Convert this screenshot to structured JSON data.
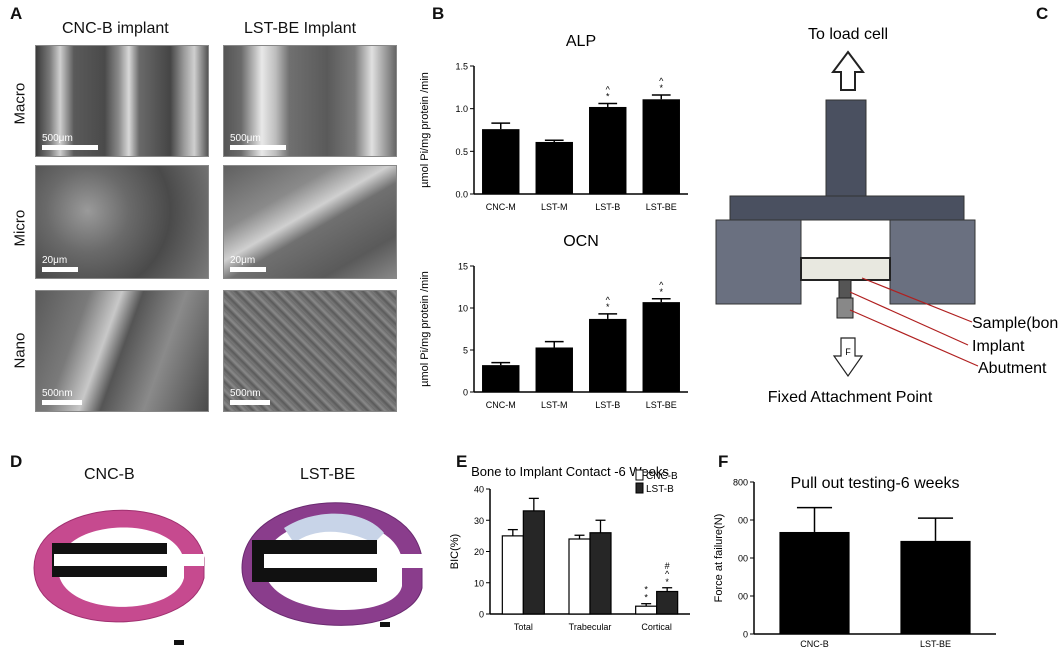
{
  "panels": {
    "A": {
      "letter": "A",
      "columns": [
        "CNC-B implant",
        "LST-BE Implant"
      ],
      "rows": [
        "Macro",
        "Micro",
        "Nano"
      ],
      "scales": [
        [
          "500μm",
          "500μm"
        ],
        [
          "20μm",
          "20μm"
        ],
        [
          "500nm",
          "500nm"
        ]
      ]
    },
    "B": {
      "letter": "B"
    },
    "C": {
      "letter": "C",
      "top_label": "To load cell",
      "sample_label": "Sample(bone)",
      "implant_label": "Implant",
      "abutment_label": "Abutment",
      "force_symbol": "F",
      "bottom_label": "Fixed Attachment Point"
    },
    "D": {
      "letter": "D",
      "labels": [
        "CNC-B",
        "LST-BE"
      ]
    },
    "E": {
      "letter": "E"
    },
    "F": {
      "letter": "F"
    }
  },
  "chart_data": [
    {
      "id": "alp",
      "type": "bar",
      "title": "ALP",
      "ylabel": "µmol Pi/mg protein /min",
      "categories": [
        "CNC-M",
        "LST-M",
        "LST-B",
        "LST-BE"
      ],
      "values": [
        0.76,
        0.61,
        1.02,
        1.11
      ],
      "errors": [
        0.07,
        0.02,
        0.04,
        0.05
      ],
      "annotations": [
        "",
        "",
        "^\n*",
        "^\n*"
      ],
      "ylim": [
        0,
        1.5
      ],
      "yticks": [
        "0.0",
        "0.5",
        "1.0",
        "1.5"
      ]
    },
    {
      "id": "ocn",
      "type": "bar",
      "title": "OCN",
      "ylabel": "µmol Pi/mg protein /min",
      "categories": [
        "CNC-M",
        "LST-M",
        "LST-B",
        "LST-BE"
      ],
      "values": [
        3.2,
        5.3,
        8.7,
        10.7
      ],
      "errors": [
        0.3,
        0.7,
        0.6,
        0.4
      ],
      "annotations": [
        "",
        "",
        "^\n*",
        "^\n*"
      ],
      "ylim": [
        0,
        15
      ],
      "yticks": [
        "0",
        "5",
        "10",
        "15"
      ]
    },
    {
      "id": "bic",
      "type": "bar",
      "title": "Bone to Implant Contact -6 Weeks",
      "ylabel": "BIC(%)",
      "categories": [
        "Total",
        "Trabecular",
        "Cortical"
      ],
      "series": [
        {
          "name": "CNC-B",
          "values": [
            25,
            24,
            2.5
          ],
          "errors": [
            2,
            1.2,
            0.8
          ],
          "color": "#ffffff"
        },
        {
          "name": "LST-B",
          "values": [
            33,
            26,
            7.2
          ],
          "errors": [
            4,
            4,
            1.2
          ],
          "color": "#262626"
        }
      ],
      "annotations": [
        [
          "",
          ""
        ],
        [
          "",
          ""
        ],
        [
          "*\n*",
          "#\n^\n*"
        ]
      ],
      "ylim": [
        0,
        40
      ],
      "yticks": [
        "0",
        "10",
        "20",
        "30",
        "40"
      ],
      "legend": "top-right"
    },
    {
      "id": "pullout",
      "type": "bar",
      "title": "Pull out testing-6 weeks",
      "ylabel": "Force at failure(N)",
      "categories": [
        "CNC-B",
        "LST-BE"
      ],
      "values": [
        537,
        490
      ],
      "errors": [
        128,
        120
      ],
      "ylim": [
        0,
        800
      ],
      "yticks": [
        "0",
        "00",
        "00",
        "00",
        "800"
      ]
    }
  ]
}
